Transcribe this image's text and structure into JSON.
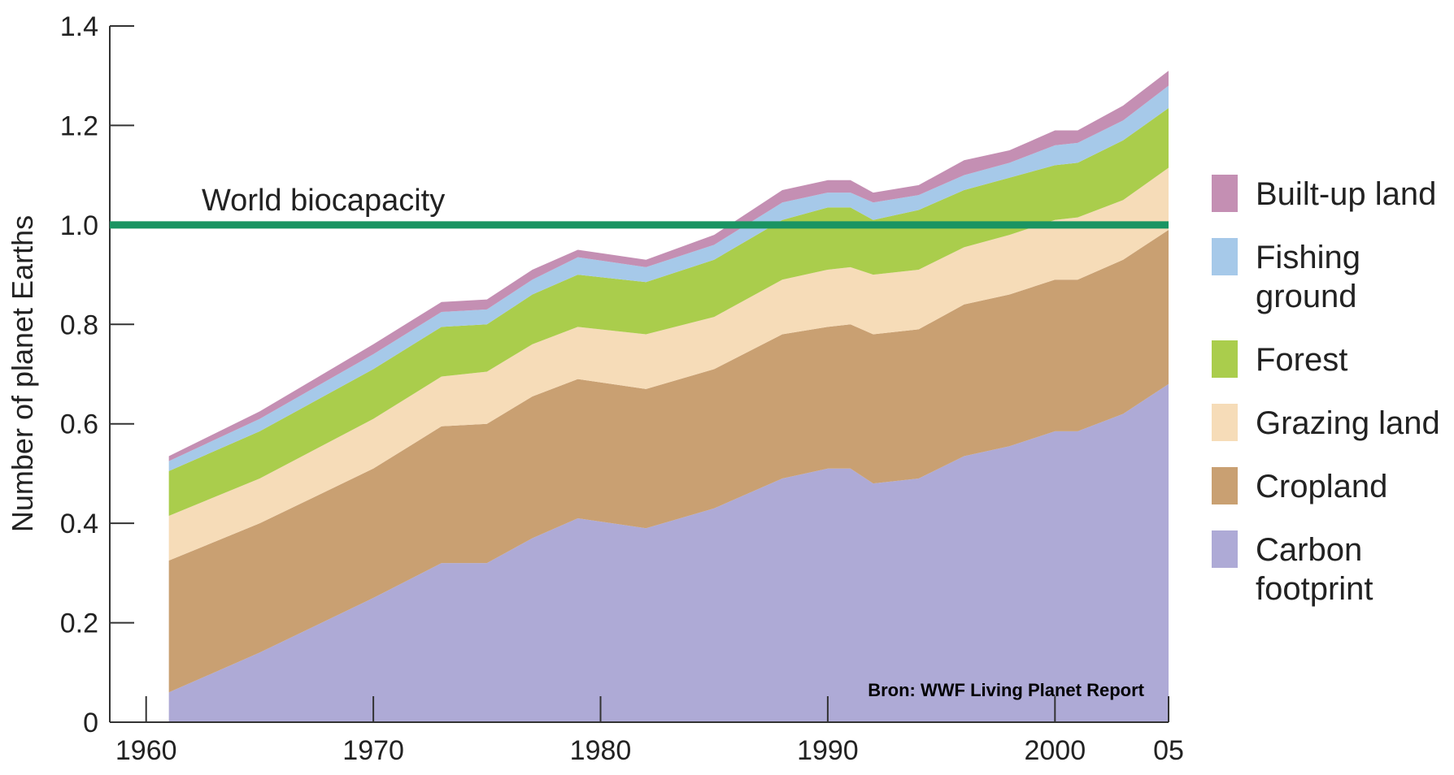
{
  "chart_data": {
    "type": "stacked_area",
    "ylabel": "Number of planet Earths",
    "x": [
      1961,
      1965,
      1970,
      1973,
      1975,
      1977,
      1979,
      1982,
      1985,
      1988,
      1990,
      1991,
      1992,
      1994,
      1996,
      1998,
      2000,
      2001,
      2003,
      2005
    ],
    "series": [
      {
        "name": "Carbon footprint",
        "color": "#aeaad6",
        "values": [
          0.06,
          0.14,
          0.25,
          0.32,
          0.32,
          0.37,
          0.41,
          0.39,
          0.43,
          0.49,
          0.51,
          0.51,
          0.48,
          0.49,
          0.535,
          0.555,
          0.585,
          0.585,
          0.62,
          0.68
        ]
      },
      {
        "name": "Cropland",
        "color": "#c9a072",
        "values": [
          0.265,
          0.26,
          0.26,
          0.275,
          0.28,
          0.285,
          0.28,
          0.28,
          0.28,
          0.29,
          0.285,
          0.29,
          0.3,
          0.3,
          0.305,
          0.305,
          0.305,
          0.305,
          0.31,
          0.31
        ]
      },
      {
        "name": "Grazing land",
        "color": "#f6dcb8",
        "values": [
          0.09,
          0.09,
          0.1,
          0.1,
          0.105,
          0.105,
          0.105,
          0.11,
          0.105,
          0.11,
          0.115,
          0.115,
          0.12,
          0.12,
          0.115,
          0.12,
          0.12,
          0.125,
          0.12,
          0.125
        ]
      },
      {
        "name": "Forest",
        "color": "#aacd4c",
        "values": [
          0.09,
          0.095,
          0.1,
          0.1,
          0.095,
          0.1,
          0.105,
          0.105,
          0.115,
          0.12,
          0.125,
          0.12,
          0.11,
          0.12,
          0.115,
          0.115,
          0.11,
          0.11,
          0.12,
          0.12
        ]
      },
      {
        "name": "Fishing ground",
        "color": "#a6c9e9",
        "values": [
          0.02,
          0.025,
          0.03,
          0.03,
          0.03,
          0.03,
          0.035,
          0.03,
          0.03,
          0.035,
          0.03,
          0.03,
          0.035,
          0.03,
          0.03,
          0.03,
          0.04,
          0.04,
          0.04,
          0.045
        ]
      },
      {
        "name": "Built-up land",
        "color": "#c48fb3",
        "values": [
          0.01,
          0.015,
          0.02,
          0.02,
          0.02,
          0.02,
          0.015,
          0.015,
          0.02,
          0.025,
          0.025,
          0.025,
          0.02,
          0.02,
          0.03,
          0.025,
          0.03,
          0.025,
          0.03,
          0.03
        ]
      }
    ],
    "xlim": [
      1958.4,
      2005
    ],
    "xticks": [
      1960,
      1970,
      1980,
      1990,
      2000,
      {
        "value": 2005,
        "label": "05"
      }
    ],
    "ylim": [
      0,
      1.4
    ],
    "yticks": [
      0,
      0.2,
      0.4,
      0.6,
      0.8,
      {
        "value": 1.0,
        "label": "1.0"
      },
      1.2,
      1.4
    ],
    "reference_line": {
      "value": 1.0,
      "label": "World biocapacity",
      "color": "#1a9462"
    },
    "source": "Bron: WWF Living Planet Report"
  }
}
